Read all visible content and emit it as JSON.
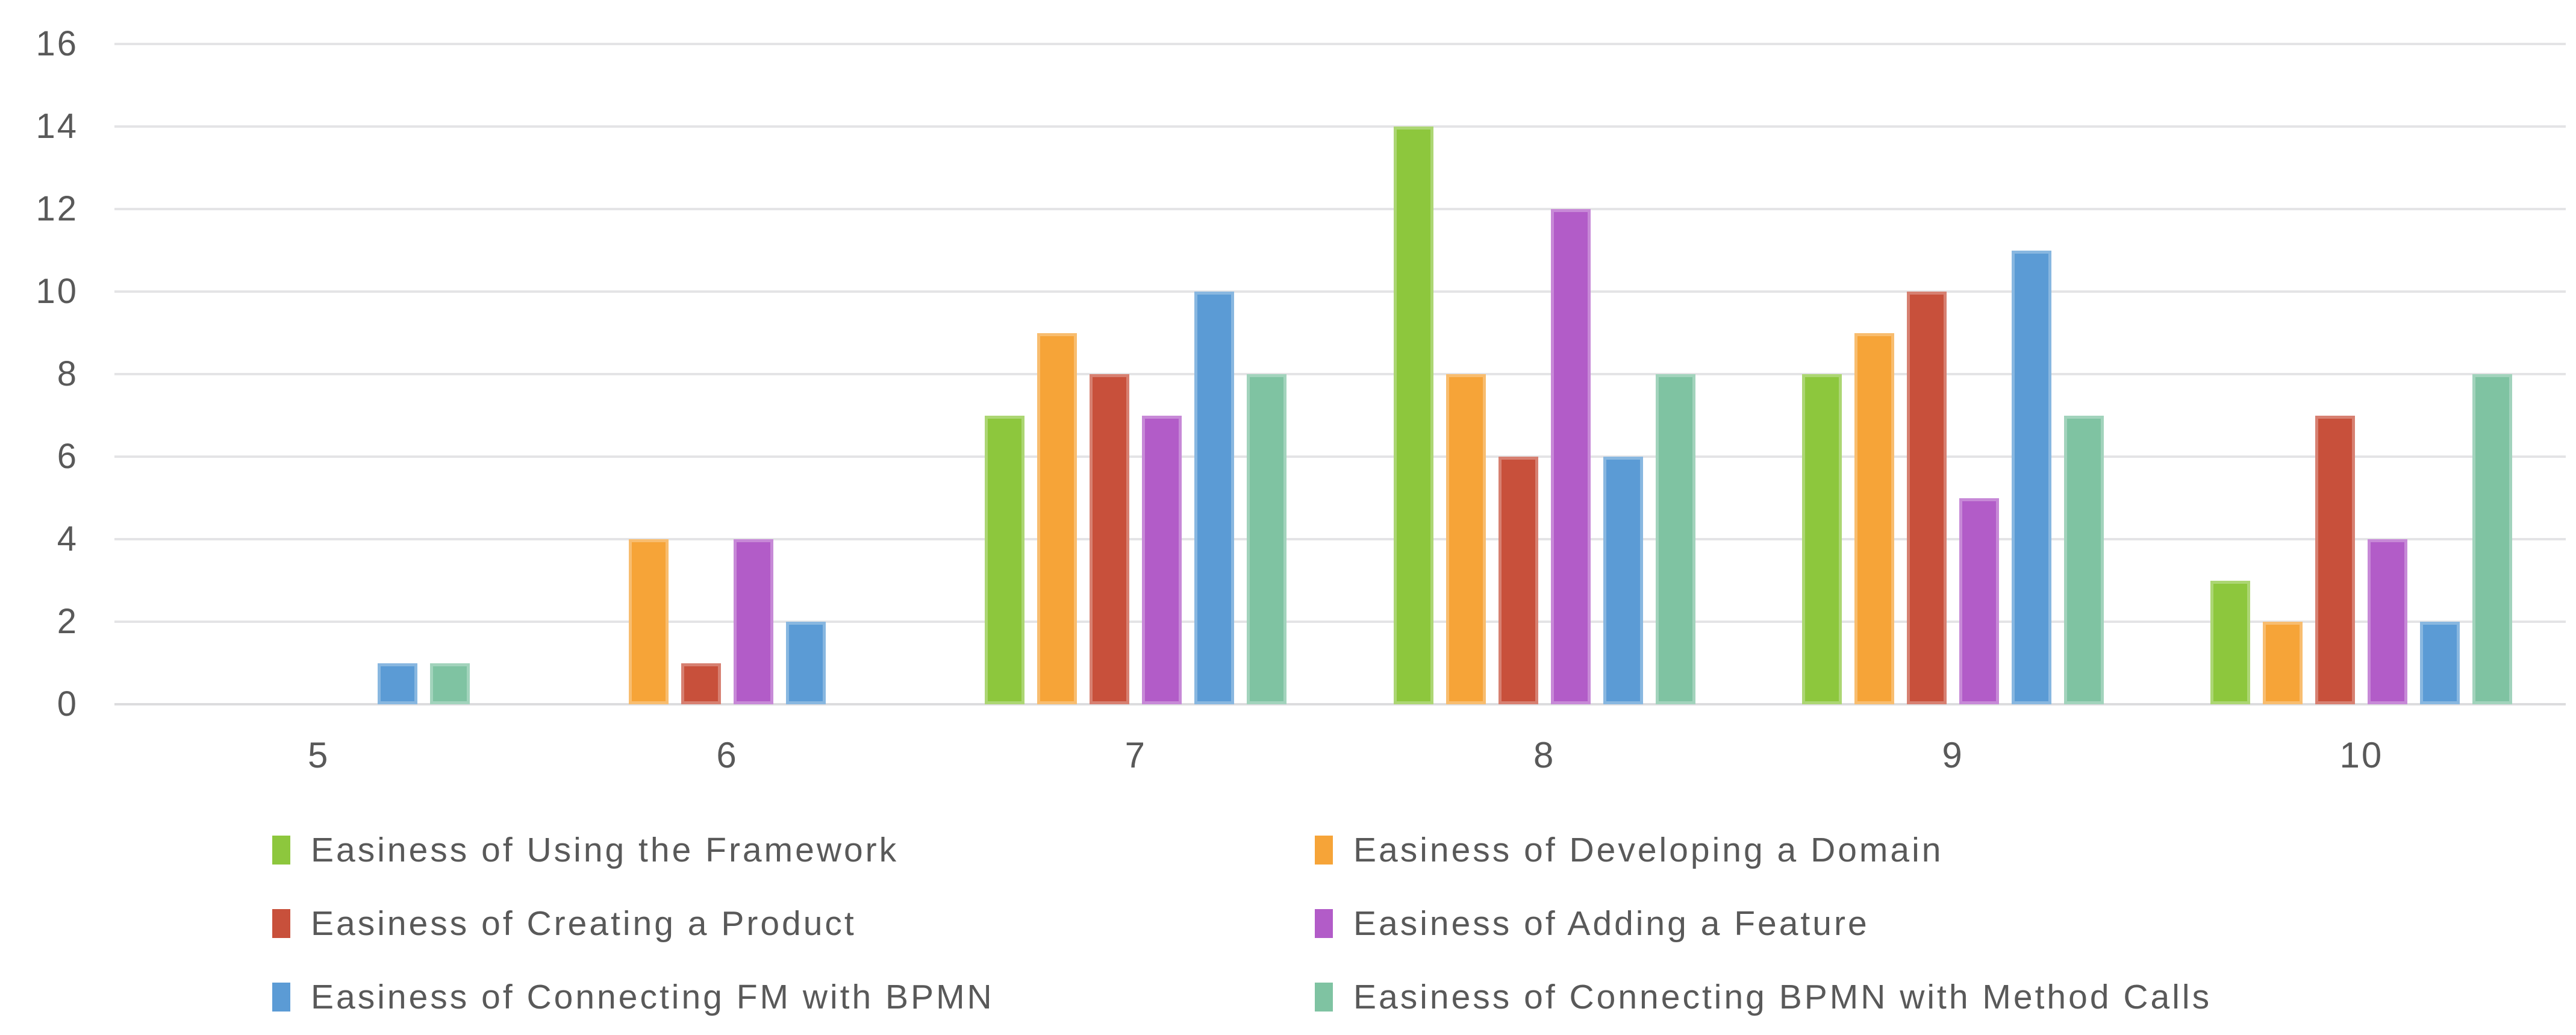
{
  "chart_data": {
    "type": "bar",
    "title": "",
    "categories": [
      "5",
      "6",
      "7",
      "8",
      "9",
      "10"
    ],
    "series": [
      {
        "name": "Easiness of Using the Framework",
        "color": "#8dc73d",
        "values": [
          0,
          0,
          7,
          14,
          8,
          3
        ]
      },
      {
        "name": "Easiness of Developing a Domain",
        "color": "#f6a438",
        "values": [
          0,
          4,
          9,
          8,
          9,
          2
        ]
      },
      {
        "name": "Easiness of Creating a Product",
        "color": "#c8503b",
        "values": [
          0,
          1,
          8,
          6,
          10,
          7
        ]
      },
      {
        "name": "Easiness of Adding a Feature",
        "color": "#b25cc8",
        "values": [
          0,
          4,
          7,
          12,
          5,
          4
        ]
      },
      {
        "name": "Easiness of Connecting FM with BPMN",
        "color": "#5b9bd5",
        "values": [
          1,
          2,
          10,
          6,
          11,
          2
        ]
      },
      {
        "name": "Easiness of Connecting BPMN with Method Calls",
        "color": "#7fc3a2",
        "values": [
          1,
          0,
          8,
          8,
          7,
          8
        ]
      }
    ],
    "y_ticks": [
      0,
      2,
      4,
      6,
      8,
      10,
      12,
      14,
      16
    ],
    "ylim": [
      0,
      16
    ],
    "xlabel": "",
    "ylabel": "",
    "grid": "horizontal",
    "legend_position": "bottom, two columns, three rows"
  },
  "styles": {
    "text_color": "#595959",
    "gridline_color": "#e4e4e6",
    "background": "#ffffff"
  }
}
